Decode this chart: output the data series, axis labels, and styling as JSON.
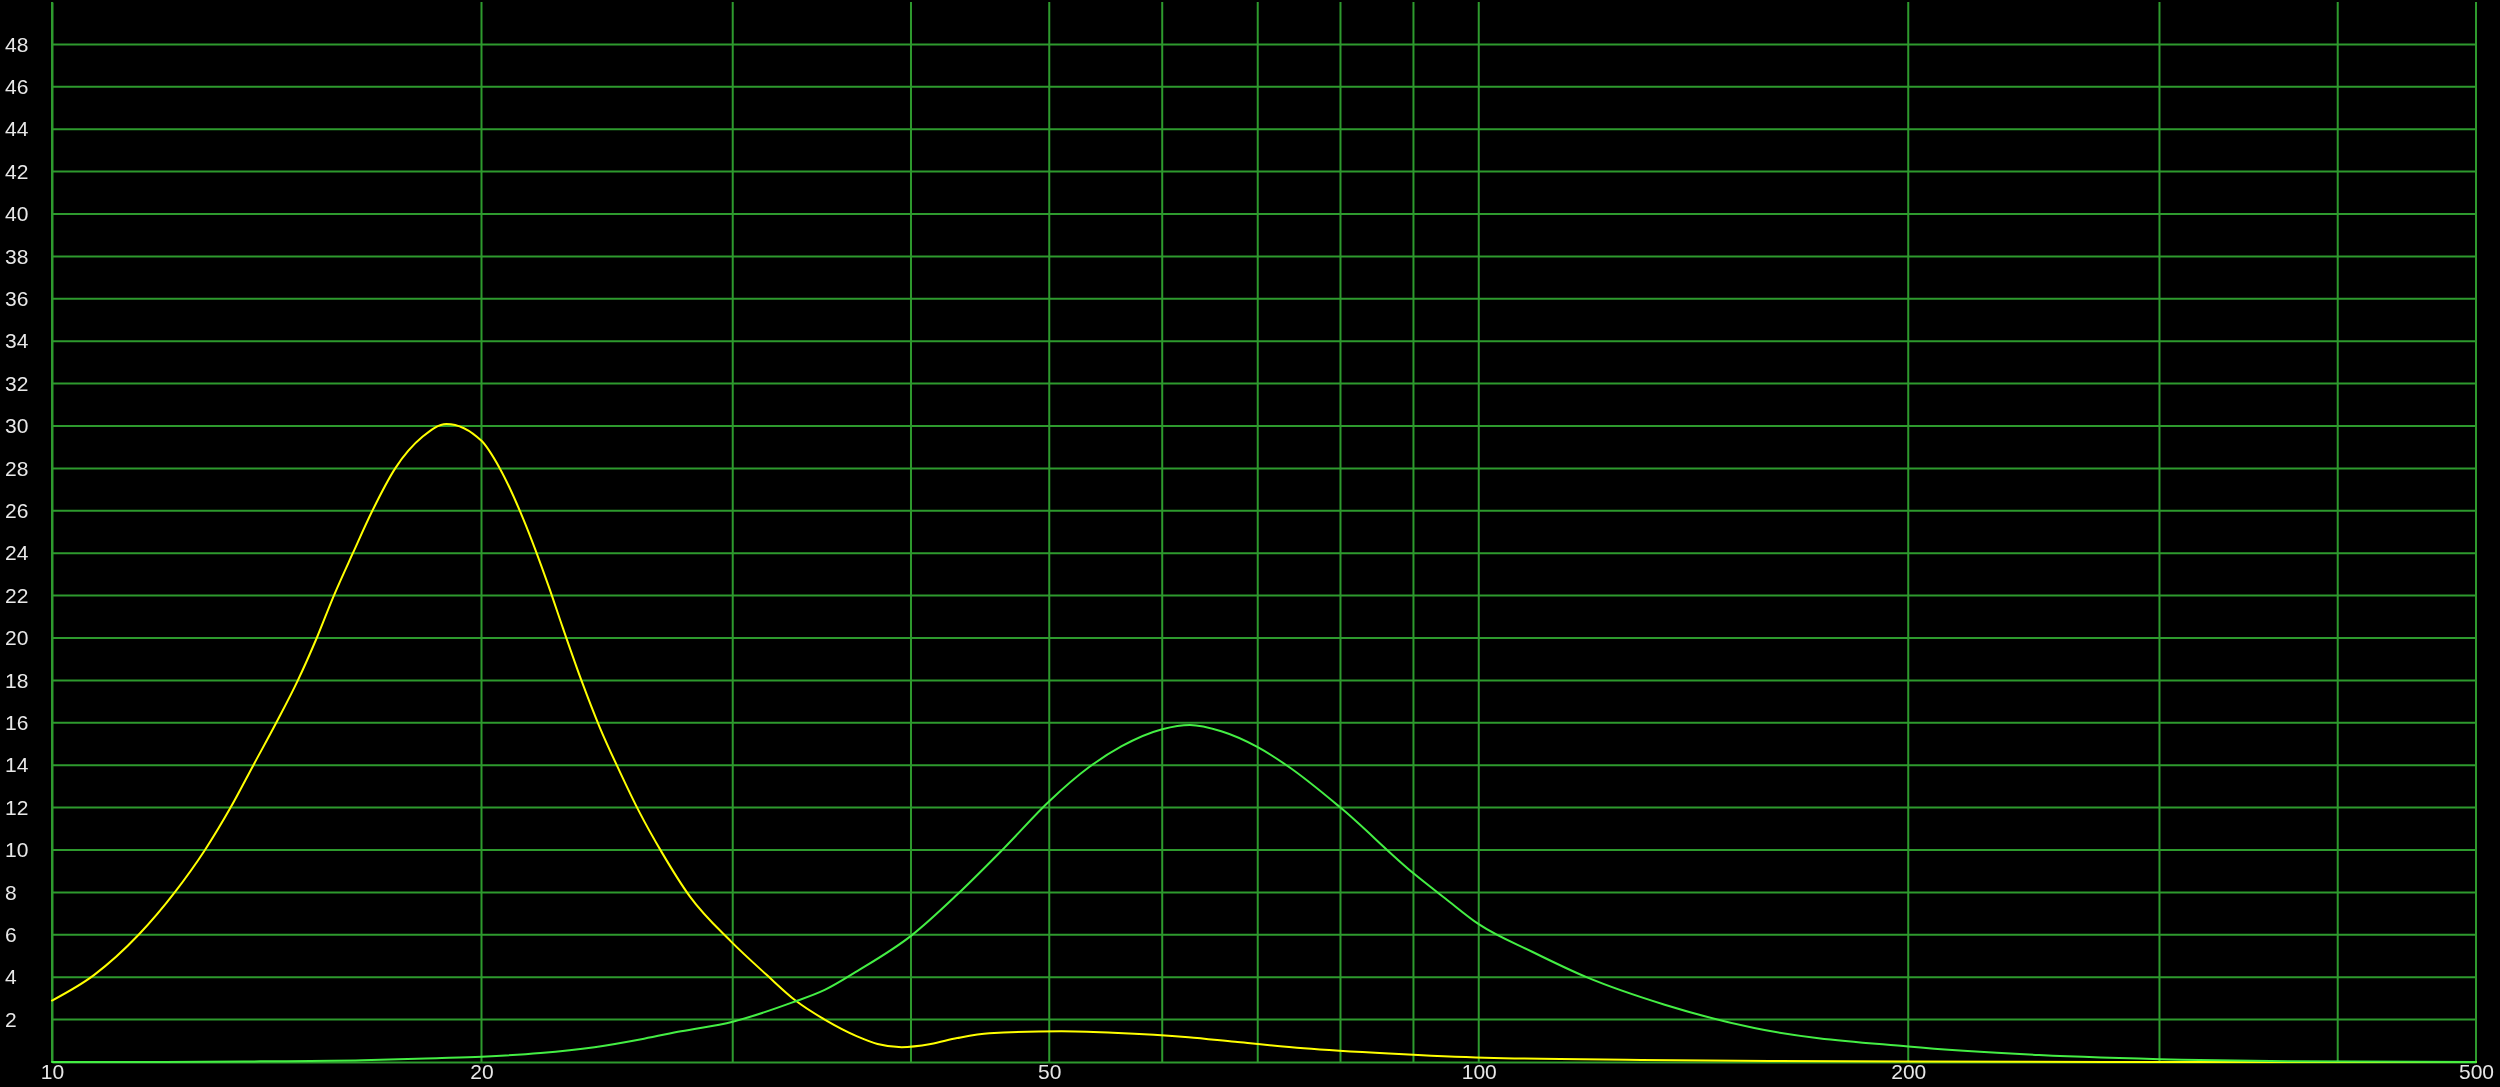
{
  "chart_data": {
    "type": "line",
    "log": "x",
    "grid": true,
    "xlim": [
      10,
      500
    ],
    "xticks": [
      10,
      20,
      {
        "value": 30,
        "label": null
      },
      {
        "value": 40,
        "label": null
      },
      50,
      {
        "value": 60,
        "label": null
      },
      {
        "value": 70,
        "label": null
      },
      {
        "value": 80,
        "label": null
      },
      {
        "value": 90,
        "label": null
      },
      100,
      200,
      {
        "value": 300,
        "label": null
      },
      {
        "value": 400,
        "label": null
      },
      500
    ],
    "ylim": [
      0,
      50
    ],
    "yticks": [
      2,
      4,
      6,
      8,
      10,
      12,
      14,
      16,
      18,
      20,
      22,
      24,
      26,
      28,
      30,
      32,
      34,
      36,
      38,
      40,
      42,
      44,
      46,
      48
    ],
    "series": [
      {
        "color": "#ffff00",
        "x": [
          10,
          10.7,
          11.5,
          12.19,
          12.8,
          13.34,
          13.84,
          14.36,
          14.87,
          15.33,
          15.76,
          16.25,
          16.77,
          17.4,
          18.19,
          18.9,
          20,
          20.6,
          21.4,
          22.3,
          22.8,
          23.5,
          24.2,
          25,
          25.8,
          26.75,
          28,
          29.9,
          31.7,
          33.2,
          34.8,
          36.7,
          37.9,
          39.4,
          41.3,
          43.1,
          45.4,
          51,
          55.4,
          62.6,
          67.5,
          75.4,
          86.5,
          101,
          130,
          160,
          200,
          300,
          500
        ],
        "values": [
          2.9,
          4.1,
          6.0,
          8.0,
          10.0,
          12.0,
          14.0,
          16.0,
          18.0,
          20.0,
          22.0,
          24.0,
          26.0,
          28.0,
          29.5,
          30.1,
          29.3,
          28.0,
          25.6,
          22.4,
          20.5,
          18.0,
          15.8,
          13.7,
          11.8,
          9.9,
          7.8,
          5.7,
          4.1,
          2.9,
          2.0,
          1.2,
          0.85,
          0.7,
          0.85,
          1.13,
          1.36,
          1.45,
          1.38,
          1.17,
          0.95,
          0.65,
          0.4,
          0.2,
          0.1,
          0.05,
          0.02,
          0,
          0
        ]
      },
      {
        "color": "#44ee44",
        "x": [
          10,
          12,
          14,
          16.5,
          18.6,
          20,
          22,
          24,
          26,
          27.6,
          30,
          33,
          34.8,
          36.7,
          40,
          43.1,
          46.5,
          50,
          53.3,
          56.2,
          60,
          62.75,
          66,
          70,
          73.5,
          80,
          90,
          94.8,
          100,
          109,
          119,
          135,
          156,
          200,
          247,
          311,
          370,
          500
        ],
        "values": [
          0,
          0,
          0.03,
          0.08,
          0.18,
          0.25,
          0.42,
          0.7,
          1.1,
          1.45,
          1.9,
          2.8,
          3.4,
          4.3,
          5.95,
          7.9,
          10.1,
          12.3,
          13.9,
          14.9,
          15.7,
          15.9,
          15.6,
          14.85,
          13.95,
          12.0,
          8.9,
          7.7,
          6.5,
          5.2,
          4.0,
          2.7,
          1.6,
          0.73,
          0.33,
          0.11,
          0.03,
          0
        ]
      }
    ]
  }
}
